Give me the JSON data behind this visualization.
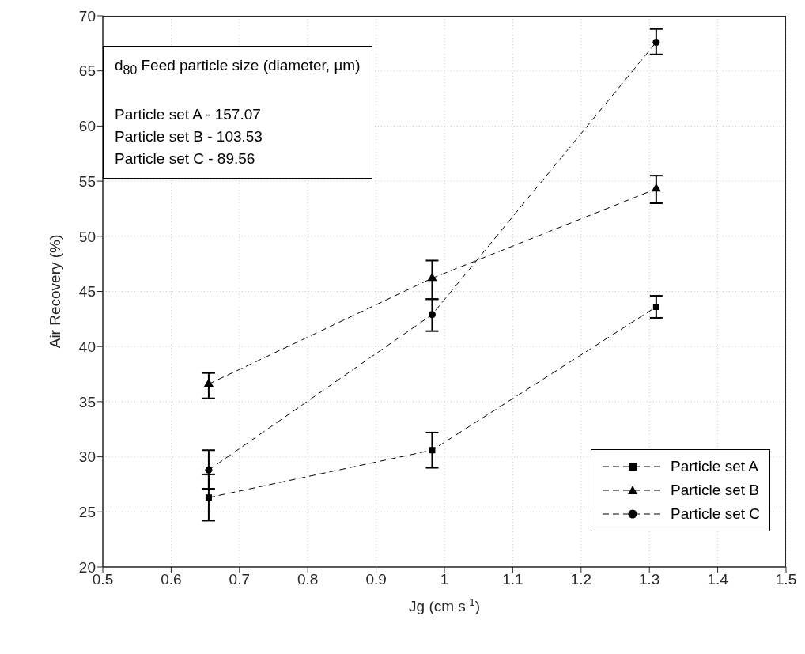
{
  "chart_data": {
    "type": "line",
    "xlabel": "Jg (cm s$^{-1}$)",
    "ylabel": "Air Recovery (%)",
    "x": [
      0.655,
      0.982,
      1.31
    ],
    "series": [
      {
        "name": "Particle set A",
        "color": "#000000",
        "marker": "square",
        "values": [
          26.3,
          30.6,
          43.6
        ],
        "errors": [
          [
            24.2,
            28.4
          ],
          [
            29.0,
            32.2
          ],
          [
            42.6,
            44.6
          ]
        ]
      },
      {
        "name": "Particle set B",
        "color": "#000000",
        "marker": "triangle",
        "values": [
          36.6,
          46.2,
          54.3
        ],
        "errors": [
          [
            35.3,
            37.6
          ],
          [
            44.3,
            47.8
          ],
          [
            53.0,
            55.5
          ]
        ]
      },
      {
        "name": "Particle set C",
        "color": "#000000",
        "marker": "circle",
        "values": [
          28.8,
          42.9,
          67.6
        ],
        "errors": [
          [
            27.1,
            30.6
          ],
          [
            41.4,
            44.3
          ],
          [
            66.5,
            68.8
          ]
        ]
      }
    ],
    "line_style": "dashed",
    "xlim": [
      0.5,
      1.5
    ],
    "xticks": [
      0.5,
      0.6,
      0.7,
      0.8,
      0.9,
      1,
      1.1,
      1.2,
      1.3,
      1.4,
      1.5
    ],
    "ylim": [
      20,
      70
    ],
    "yticks": [
      20,
      25,
      30,
      35,
      40,
      45,
      50,
      55,
      60,
      65,
      70
    ],
    "grid": true,
    "legend": "bottom right",
    "annotations": [
      "d$_{80}$ Feed particle size (diameter, µm)",
      "Particle set A - 157.07",
      "Particle set B - 103.53",
      "Particle set C - 89.56"
    ]
  }
}
